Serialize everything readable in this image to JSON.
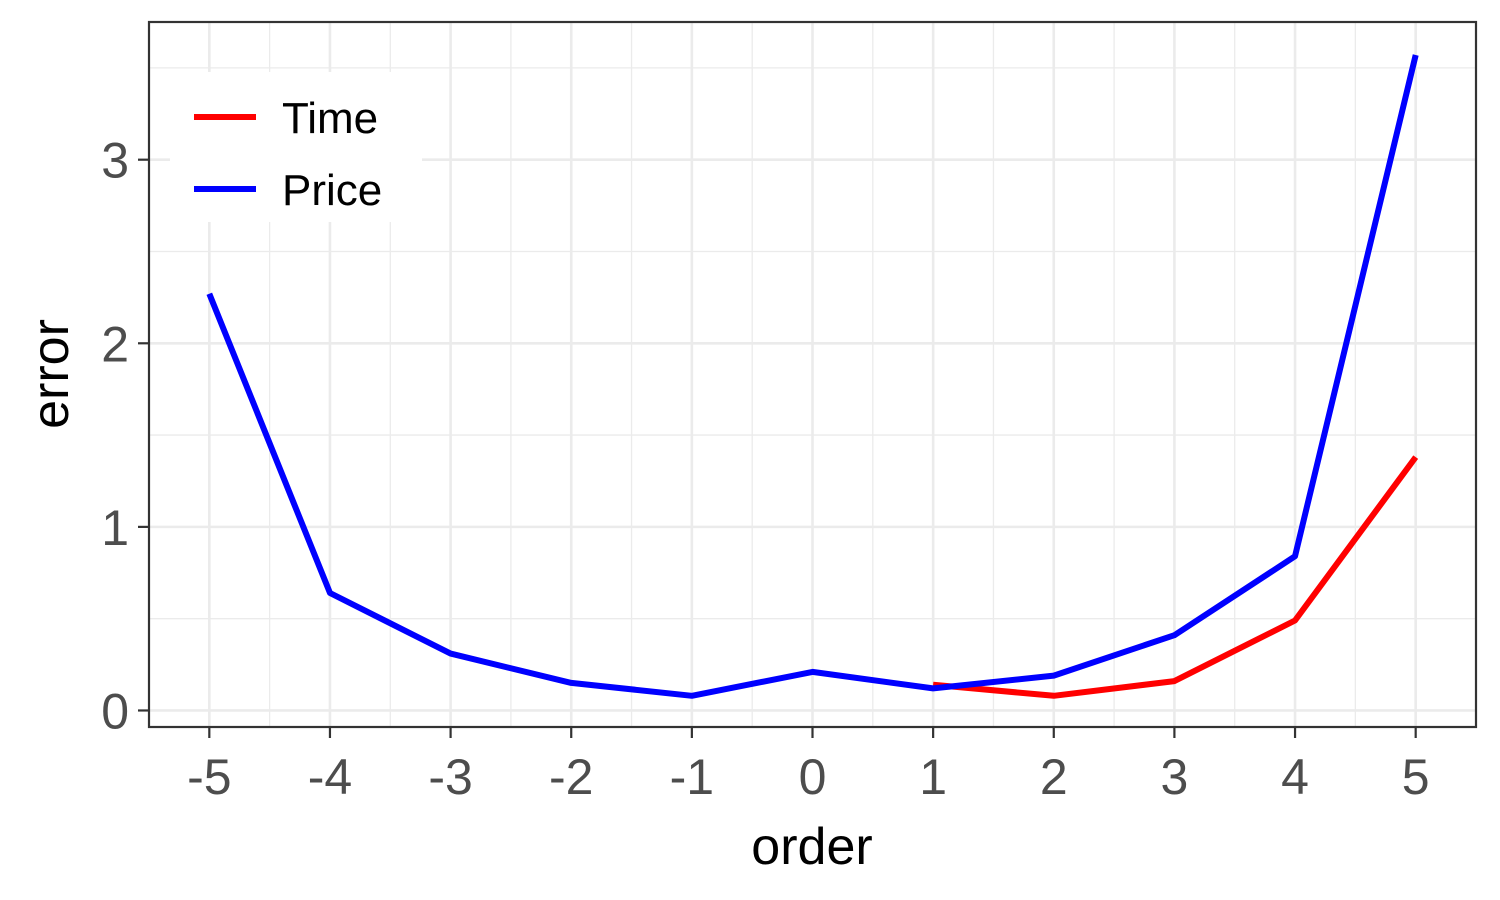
{
  "chart_data": {
    "type": "line",
    "xlabel": "order",
    "ylabel": "error",
    "xlim": [
      -5.5,
      5.5
    ],
    "ylim": [
      -0.09,
      3.75
    ],
    "x_ticks": [
      -5,
      -4,
      -3,
      -2,
      -1,
      0,
      1,
      2,
      3,
      4,
      5
    ],
    "y_ticks": [
      0,
      1,
      2,
      3
    ],
    "grid": true,
    "legend_position": "top-left",
    "series": [
      {
        "name": "Time",
        "color": "#ff0000",
        "x": [
          1,
          2,
          3,
          4,
          5
        ],
        "y": [
          0.14,
          0.08,
          0.16,
          0.49,
          1.38
        ]
      },
      {
        "name": "Price",
        "color": "#0000ff",
        "x": [
          -5,
          -4,
          -3,
          -2,
          -1,
          0,
          1,
          2,
          3,
          4,
          5
        ],
        "y": [
          2.27,
          0.64,
          0.31,
          0.15,
          0.08,
          0.21,
          0.12,
          0.19,
          0.41,
          0.84,
          3.57
        ]
      }
    ]
  }
}
